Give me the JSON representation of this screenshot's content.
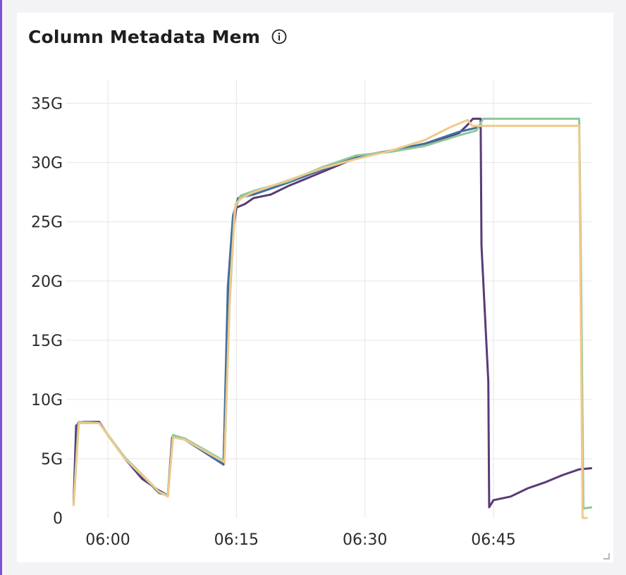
{
  "panel": {
    "title": "Column Metadata Mem",
    "info_icon": "info-circle-icon",
    "resize_icon": "resize-corner-icon"
  },
  "chart_data": {
    "type": "line",
    "title": "Column Metadata Mem",
    "xlabel": "",
    "ylabel": "",
    "ylim": [
      0,
      37000000000
    ],
    "x_ticks": [
      "06:00",
      "06:15",
      "06:30",
      "06:45"
    ],
    "y_ticks": [
      "0",
      "5G",
      "10G",
      "15G",
      "20G",
      "25G",
      "30G",
      "35G"
    ],
    "y_tick_values": [
      0,
      5000000000,
      10000000000,
      15000000000,
      20000000000,
      25000000000,
      30000000000,
      35000000000
    ],
    "grid": true,
    "legend": "none",
    "series": [
      {
        "color": "#5a3a78",
        "points": [
          [
            "05:56",
            1.2
          ],
          [
            "05:56.3",
            7.8
          ],
          [
            "05:57",
            8.1
          ],
          [
            "05:59",
            8.1
          ],
          [
            "06:00",
            7.0
          ],
          [
            "06:02",
            5.0
          ],
          [
            "06:04",
            3.3
          ],
          [
            "06:06",
            2.3
          ],
          [
            "06:07",
            1.9
          ],
          [
            "06:07.5",
            6.8
          ],
          [
            "06:09",
            6.7
          ],
          [
            "06:11",
            5.7
          ],
          [
            "06:13.5",
            4.6
          ],
          [
            "06:14",
            16.5
          ],
          [
            "06:14.5",
            23.5
          ],
          [
            "06:15",
            26.2
          ],
          [
            "06:16",
            26.5
          ],
          [
            "06:17",
            27.0
          ],
          [
            "06:19",
            27.3
          ],
          [
            "06:21",
            28.0
          ],
          [
            "06:23",
            28.6
          ],
          [
            "06:25",
            29.2
          ],
          [
            "06:27",
            29.8
          ],
          [
            "06:29",
            30.4
          ],
          [
            "06:31",
            30.7
          ],
          [
            "06:33",
            31.0
          ],
          [
            "06:35",
            31.3
          ],
          [
            "06:37",
            31.6
          ],
          [
            "06:39",
            32.0
          ],
          [
            "06:41",
            32.5
          ],
          [
            "06:42",
            33.2
          ],
          [
            "06:42.6",
            33.7
          ],
          [
            "06:43.5",
            33.7
          ],
          [
            "06:43.6",
            23.0
          ],
          [
            "06:44.4",
            11.5
          ],
          [
            "06:44.5",
            0.9
          ],
          [
            "06:45",
            1.5
          ],
          [
            "06:47",
            1.8
          ],
          [
            "06:49",
            2.5
          ],
          [
            "06:51",
            3.0
          ],
          [
            "06:53",
            3.6
          ],
          [
            "06:55",
            4.1
          ],
          [
            "06:56.5",
            4.2
          ]
        ]
      },
      {
        "color": "#3f6fa0",
        "points": [
          [
            "05:56",
            1.1
          ],
          [
            "05:56.5",
            8.0
          ],
          [
            "05:58",
            8.1
          ],
          [
            "05:59",
            8.0
          ],
          [
            "06:02",
            5.0
          ],
          [
            "06:06",
            2.1
          ],
          [
            "06:07",
            1.9
          ],
          [
            "06:07.6",
            6.9
          ],
          [
            "06:09",
            6.6
          ],
          [
            "06:13.5",
            4.5
          ],
          [
            "06:14",
            19.5
          ],
          [
            "06:14.6",
            25.5
          ],
          [
            "06:15.2",
            27.0
          ],
          [
            "06:17",
            27.3
          ],
          [
            "06:21",
            28.3
          ],
          [
            "06:25",
            29.4
          ],
          [
            "06:29",
            30.5
          ],
          [
            "06:33",
            31.0
          ],
          [
            "06:37",
            31.6
          ],
          [
            "06:41",
            32.6
          ],
          [
            "06:43.4",
            33.0
          ],
          [
            "06:43.5",
            33.0
          ]
        ]
      },
      {
        "color": "#8fc79a",
        "points": [
          [
            "05:56",
            1.1
          ],
          [
            "05:56.6",
            8.1
          ],
          [
            "05:59",
            8.0
          ],
          [
            "06:02",
            5.1
          ],
          [
            "06:06",
            2.2
          ],
          [
            "06:07",
            1.9
          ],
          [
            "06:07.6",
            7.0
          ],
          [
            "06:09",
            6.7
          ],
          [
            "06:13.6",
            4.8
          ],
          [
            "06:14.2",
            18.0
          ],
          [
            "06:14.8",
            26.0
          ],
          [
            "06:15.5",
            27.2
          ],
          [
            "06:17",
            27.6
          ],
          [
            "06:21",
            28.4
          ],
          [
            "06:25",
            29.6
          ],
          [
            "06:29",
            30.6
          ],
          [
            "06:33",
            30.9
          ],
          [
            "06:37",
            31.4
          ],
          [
            "06:41",
            32.3
          ],
          [
            "06:43",
            32.7
          ],
          [
            "06:43.8",
            33.7
          ],
          [
            "06:55",
            33.7
          ],
          [
            "06:55.2",
            22.0
          ],
          [
            "06:55.5",
            0.8
          ],
          [
            "06:56.5",
            0.9
          ]
        ]
      },
      {
        "color": "#f0c98a",
        "points": [
          [
            "05:56",
            1.0
          ],
          [
            "05:56.6",
            8.0
          ],
          [
            "05:59",
            8.0
          ],
          [
            "06:02",
            5.0
          ],
          [
            "06:06",
            2.2
          ],
          [
            "06:07",
            1.8
          ],
          [
            "06:07.6",
            6.8
          ],
          [
            "06:09",
            6.6
          ],
          [
            "06:13.6",
            4.7
          ],
          [
            "06:14.3",
            20.0
          ],
          [
            "06:14.9",
            26.5
          ],
          [
            "06:15.6",
            27.0
          ],
          [
            "06:17",
            27.5
          ],
          [
            "06:21",
            28.5
          ],
          [
            "06:25",
            29.5
          ],
          [
            "06:29",
            30.3
          ],
          [
            "06:33",
            31.0
          ],
          [
            "06:37",
            31.9
          ],
          [
            "06:40",
            33.0
          ],
          [
            "06:42",
            33.6
          ],
          [
            "06:42.5",
            33.1
          ],
          [
            "06:55",
            33.1
          ],
          [
            "06:55.4",
            0.0
          ],
          [
            "06:56",
            0.0
          ]
        ]
      }
    ]
  }
}
